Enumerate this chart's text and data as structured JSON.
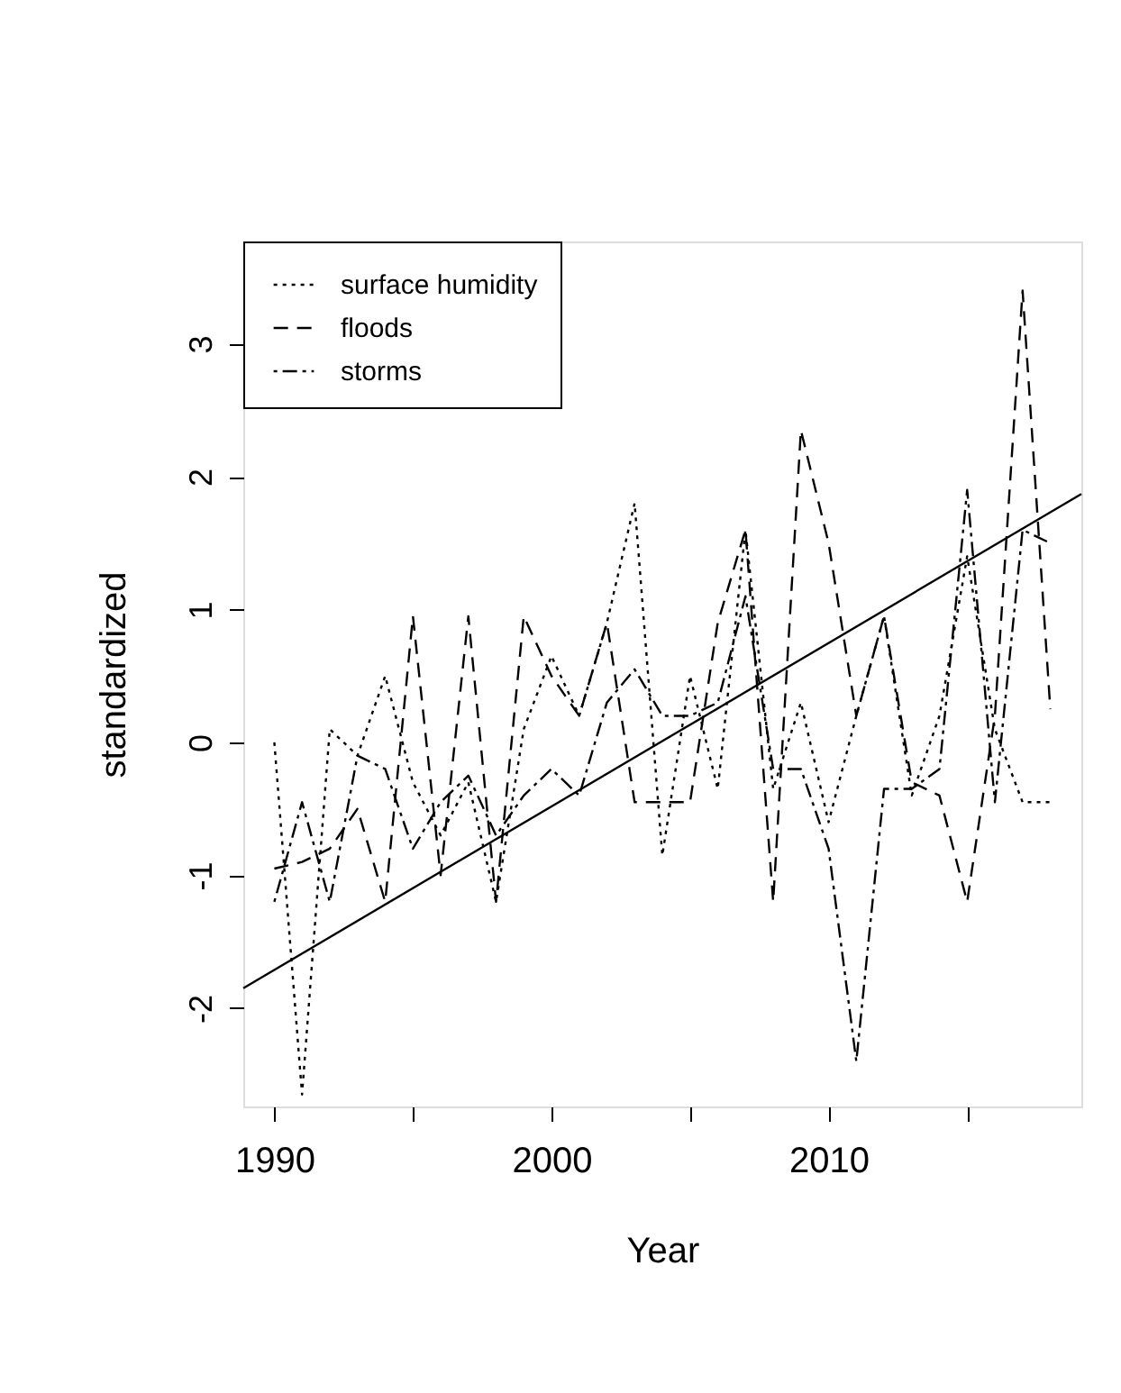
{
  "chart_data": {
    "type": "line",
    "xlabel": "Year",
    "ylabel": "standardized",
    "x": [
      1990,
      1991,
      1992,
      1993,
      1994,
      1995,
      1996,
      1997,
      1998,
      1999,
      2000,
      2001,
      2002,
      2003,
      2004,
      2005,
      2006,
      2007,
      2008,
      2009,
      2010,
      2011,
      2012,
      2013,
      2014,
      2015,
      2016,
      2017,
      2018
    ],
    "series": [
      {
        "name": "surface humidity",
        "color": "#000000",
        "line_style": "dotted",
        "values": [
          0,
          -2.65,
          0.1,
          -0.1,
          0.5,
          -0.3,
          -0.7,
          -0.3,
          -1.2,
          0.1,
          0.65,
          0.2,
          0.9,
          1.8,
          -0.85,
          0.5,
          -0.35,
          1.6,
          -0.35,
          0.3,
          -0.6,
          0.2,
          0.95,
          -0.4,
          0.2,
          1.4,
          0.1,
          -0.45,
          -0.45
        ]
      },
      {
        "name": "floods",
        "color": "#000000",
        "line_style": "dashed",
        "values": [
          -0.95,
          -0.9,
          -0.8,
          -0.5,
          -1.2,
          0.95,
          -1.0,
          0.95,
          -1.2,
          0.95,
          0.5,
          0.2,
          0.9,
          -0.45,
          -0.45,
          -0.45,
          0.9,
          1.6,
          -1.2,
          2.35,
          1.5,
          0.2,
          0.95,
          -0.3,
          -0.4,
          -1.2,
          0.2,
          3.4,
          0.25
        ]
      },
      {
        "name": "storms",
        "color": "#000000",
        "line_style": "dashdot",
        "values": [
          -1.2,
          -0.45,
          -1.2,
          -0.1,
          -0.2,
          -0.8,
          -0.45,
          -0.25,
          -0.7,
          -0.4,
          -0.2,
          -0.4,
          0.3,
          0.55,
          0.2,
          0.2,
          0.3,
          1.1,
          -0.2,
          -0.2,
          -0.8,
          -2.4,
          -0.35,
          -0.35,
          -0.2,
          1.9,
          -0.45,
          1.6,
          1.5
        ]
      },
      {
        "type": "line",
        "color": "#000000",
        "line_style": "solid",
        "x": [
          1988.88,
          2019.12
        ],
        "values": [
          -1.85,
          1.87
        ]
      }
    ],
    "xlim": [
      1988.88,
      2019.12
    ],
    "ylim": [
      -2.74,
      3.77
    ],
    "xticks": [
      1990,
      {
        "value": 1995,
        "label": null
      },
      2000,
      {
        "value": 2005,
        "label": null
      },
      2010,
      {
        "value": 2015,
        "label": null
      }
    ],
    "yticks": [
      {
        "value": -2,
        "label": "-2"
      },
      {
        "value": -1,
        "label": "-1"
      },
      {
        "value": 0,
        "label": "0"
      },
      {
        "value": 1,
        "label": "1"
      },
      {
        "value": 2,
        "label": "2"
      },
      {
        "value": 3,
        "label": "3"
      }
    ],
    "grid": false,
    "legend": "top left"
  }
}
